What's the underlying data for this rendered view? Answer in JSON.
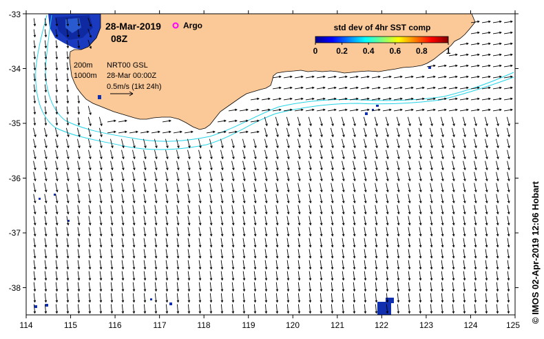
{
  "map": {
    "date": "28-Mar-2019",
    "time": "08Z",
    "argo_label": "Argo",
    "contours": [
      "200m",
      "1000m"
    ],
    "product": "NRT00 GSL",
    "product_time": "28-Mar 00:00Z",
    "scale_label": "0.5m/s (1kt 24h)",
    "colorbar": {
      "title": "std dev of 4hr SST comp",
      "ticks": [
        "0",
        "0.2",
        "0.4",
        "0.6",
        "0.8",
        "1"
      ]
    },
    "lon_ticks": [
      "114",
      "115",
      "116",
      "117",
      "118",
      "119",
      "120",
      "121",
      "122",
      "123",
      "124",
      "125"
    ],
    "lat_ticks": [
      "-33",
      "-34",
      "-35",
      "-36",
      "-37",
      "-38"
    ],
    "credit": "© IMOS 02-Apr-2019 12:06 Hobart",
    "colors": {
      "land": "#fbc898",
      "sea": "#ffffff",
      "isobath": "#22d3e6",
      "argo": "#ff00ff",
      "sst_high": "#1030b0"
    }
  }
}
